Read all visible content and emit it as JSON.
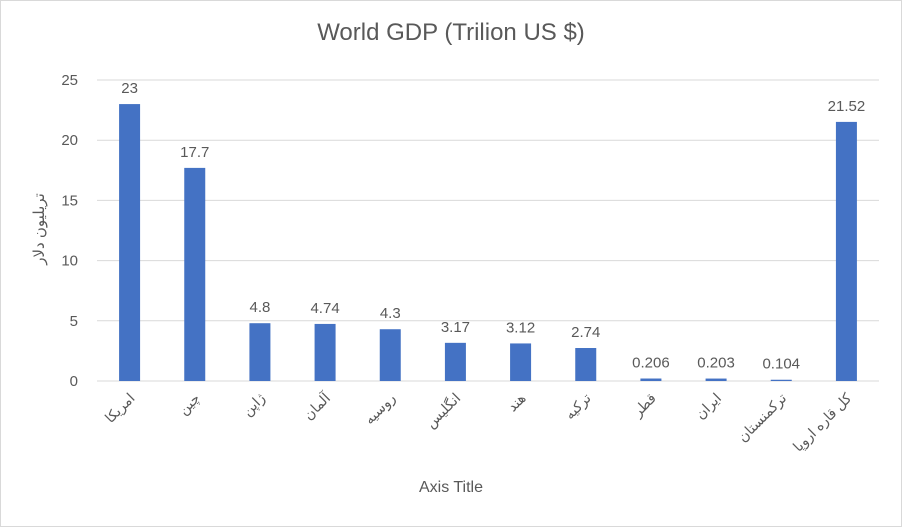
{
  "chart_data": {
    "type": "bar",
    "title": "World GDP (Trilion  US $)",
    "xlabel": "Axis Title",
    "ylabel": "تریلیون دلار",
    "categories": [
      "امریکا",
      "چین",
      "ژاپن",
      "آلمان",
      "روسیه",
      "انگلیس",
      "هند",
      "ترکیه",
      "قطر",
      "ایران",
      "ترکمنستان",
      "کل قاره اروپا"
    ],
    "values": [
      23,
      17.7,
      4.8,
      4.74,
      4.3,
      3.17,
      3.12,
      2.74,
      0.206,
      0.203,
      0.104,
      21.52
    ],
    "data_labels": [
      "23",
      "17.7",
      "4.8",
      "4.74",
      "4.3",
      "3.17",
      "3.12",
      "2.74",
      "0.206",
      "0.203",
      "0.104",
      "21.52"
    ],
    "y_ticks": [
      0,
      5,
      10,
      15,
      20,
      25
    ],
    "ylim": [
      0,
      25
    ],
    "grid": true,
    "legend": "none",
    "colors": {
      "bar": "#4472c4",
      "grid": "#d9d9d9",
      "text": "#595959"
    }
  }
}
